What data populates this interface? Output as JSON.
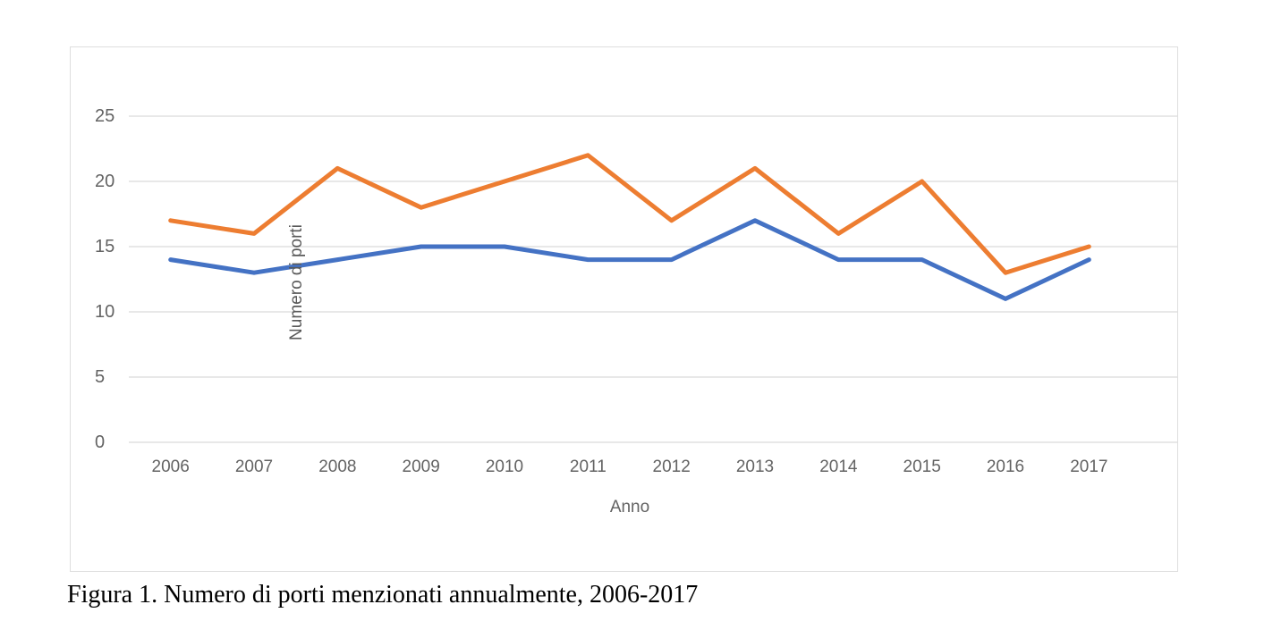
{
  "figure": {
    "caption": "Figura 1. Numero di porti menzionati annualmente, 2006-2017"
  },
  "chart_data": {
    "type": "line",
    "title": "",
    "xlabel": "Anno",
    "ylabel": "Numero di porti",
    "categories": [
      "2006",
      "2007",
      "2008",
      "2009",
      "2010",
      "2011",
      "2012",
      "2013",
      "2014",
      "2015",
      "2016",
      "2017"
    ],
    "series": [
      {
        "color": "#4472C4",
        "values": [
          14,
          13,
          14,
          15,
          15,
          14,
          14,
          17,
          14,
          14,
          11,
          14
        ]
      },
      {
        "color": "#ED7D31",
        "values": [
          17,
          16,
          21,
          18,
          20,
          22,
          17,
          21,
          16,
          20,
          13,
          15
        ]
      }
    ],
    "ylim": [
      0,
      25
    ],
    "y_ticks": [
      0,
      5,
      10,
      15,
      20,
      25
    ],
    "grid": true,
    "legend": "none"
  },
  "colors": {
    "gridline": "#d9d9d9",
    "axis_text": "#636363",
    "card_border": "#dedede",
    "background": "#ffffff"
  }
}
